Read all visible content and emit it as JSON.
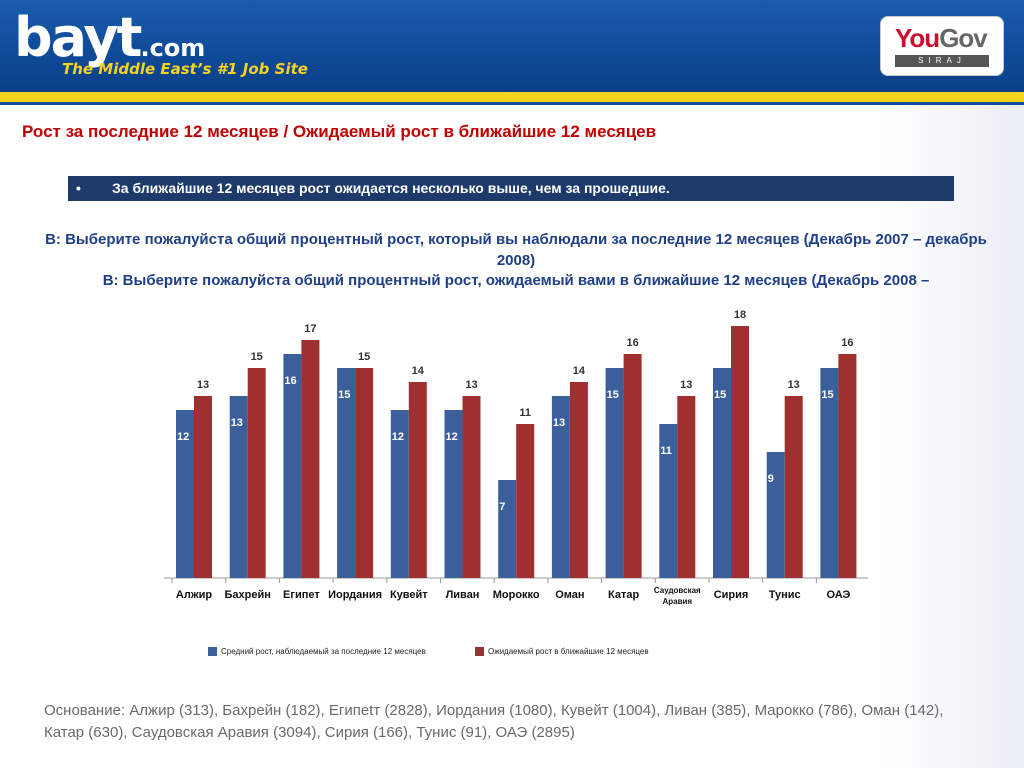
{
  "header": {
    "logo_word": "bayt",
    "logo_suffix": ".com",
    "tagline": "The Middle East’s #1 Job Site",
    "partner_logo_main": "You",
    "partner_logo_gov": "Gov",
    "partner_logo_sub": "SIRAJ"
  },
  "slide": {
    "title": "Рост за последние 12 месяцев / Ожидаемый рост в ближайшие 12 месяцев",
    "bullet_marker": "•",
    "bullet_text": "За ближайшие 12 месяцев рост ожидается несколько выше, чем за прошедшие.",
    "question_1": "В: Выберите пожалуйста общий процентный рост, который вы наблюдали за последние 12 месяцев (Декабрь 2007 – декабрь 2008)",
    "question_2": "В: Выберите пожалуйста общий процентный рост, ожидаемый вами в ближайшие 12 месяцев (Декабрь 2008 –",
    "footer_line_1": "Основание:  Алжир (313), Бахрейн (182), Египеtт (2828), Иордания (1080), Кувейт (1004), Ливан  (385), Марокко (786), Оман (142),",
    "footer_line_2": "Катар (630), Саудовская Аравия (3094), Сирия (166), Тунис (91), ОАЭ (2895)"
  },
  "colors": {
    "series_past": "#3b5f9a",
    "series_expected": "#a0302f",
    "title_red": "#c00000",
    "question_blue": "#1f3f86",
    "header_blue": "#0e4a99",
    "stripe_yellow": "#f6d31f"
  },
  "chart_data": {
    "type": "bar",
    "categories": [
      "Алжир",
      "Бахрейн",
      "Египет",
      "Иордания",
      "Кувейт",
      "Ливан",
      "Морокко",
      "Оман",
      "Катар",
      "Саудовская Аравия",
      "Сирия",
      "Тунис",
      "ОАЭ"
    ],
    "category_labels": [
      [
        "Алжир"
      ],
      [
        "Бахрейн"
      ],
      [
        "Египет"
      ],
      [
        "Иордания"
      ],
      [
        "Кувейт"
      ],
      [
        "Ливан"
      ],
      [
        "Морокко"
      ],
      [
        "Оман"
      ],
      [
        "Катар"
      ],
      [
        "Саудовская",
        "Аравия"
      ],
      [
        "Сирия"
      ],
      [
        "Тунис"
      ],
      [
        "ОАЭ"
      ]
    ],
    "series": [
      {
        "name": "Средний рост, наблюдаемый за последние 12 месяцев",
        "values": [
          12,
          13,
          16,
          15,
          12,
          12,
          7,
          13,
          15,
          11,
          15,
          9,
          15
        ]
      },
      {
        "name": "Ожидаемый рост в ближайшие 12 месяцев",
        "values": [
          13,
          15,
          17,
          15,
          14,
          13,
          11,
          14,
          16,
          13,
          18,
          13,
          16
        ]
      }
    ],
    "title": "",
    "xlabel": "",
    "ylabel": "",
    "ylim": [
      0,
      18
    ],
    "grid": false,
    "legend_position": "bottom"
  }
}
